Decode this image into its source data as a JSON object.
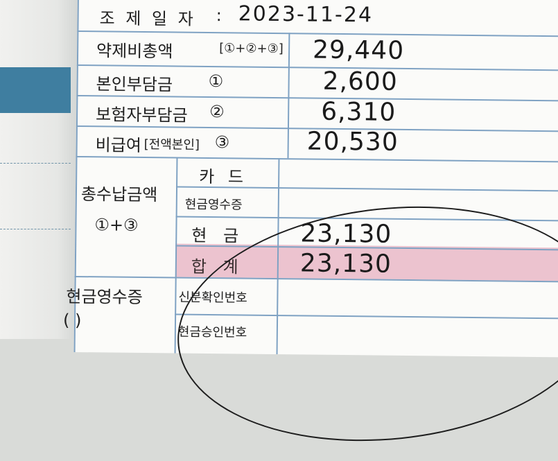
{
  "header": {
    "label": "조 제 일 자",
    "colon": ":",
    "date": "2023-11-24"
  },
  "rows": [
    {
      "label": "약제비총액",
      "suffix": "[①+②+③]",
      "value": "29,440"
    },
    {
      "label": "본인부담금",
      "suffix": "①",
      "value": "2,600"
    },
    {
      "label": "보험자부담금",
      "suffix": "②",
      "value": "6,310"
    },
    {
      "label": "비급여",
      "suffix": "[전액본인]",
      "suffix2": "③",
      "value": "20,530"
    }
  ],
  "total": {
    "label": "총수납금액",
    "formula": "①+③",
    "card_label": "카 드",
    "cash_receipt_label": "현금영수증",
    "cash_label": "현 금",
    "cash_value": "23,130",
    "sum_label": "합 계",
    "sum_value": "23,130"
  },
  "footer": {
    "cash_receipt_label": "현금영수증",
    "paren": "(          )",
    "id_label": "신분확인번호",
    "approval_label": "현금승인번호"
  },
  "colors": {
    "rule": "#7fa2c3",
    "highlight": "#ecc3cf",
    "stub_band": "#3f7ea0"
  }
}
